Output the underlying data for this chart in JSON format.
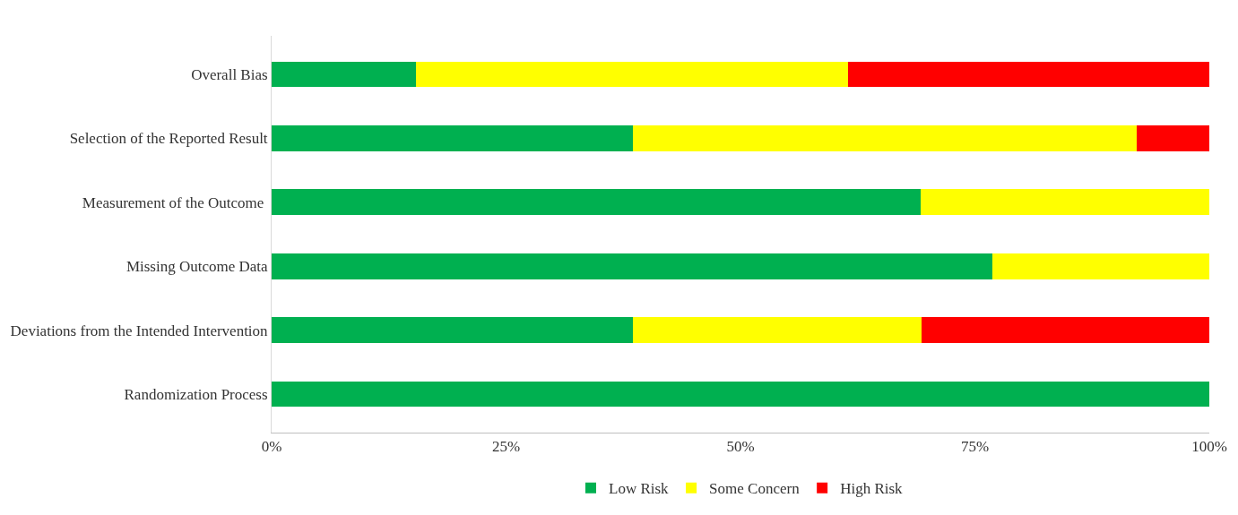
{
  "chart_data": {
    "type": "bar",
    "orientation": "horizontal",
    "stacked": true,
    "categories": [
      "Overall Bias",
      "Selection of the Reported Result",
      "Measurement of the Outcome ",
      "Missing Outcome Data",
      "Deviations from the Intended Intervention",
      "Randomization Process"
    ],
    "series": [
      {
        "name": "Low Risk",
        "color": "#00b050",
        "values": [
          15.4,
          38.5,
          69.2,
          76.9,
          38.5,
          100
        ]
      },
      {
        "name": "Some Concern",
        "color": "#ffff00",
        "values": [
          46.1,
          53.8,
          30.8,
          23.1,
          30.8,
          0
        ]
      },
      {
        "name": "High Risk",
        "color": "#ff0000",
        "values": [
          38.5,
          7.7,
          0,
          0,
          30.7,
          0
        ]
      }
    ],
    "xlim": [
      0,
      100
    ],
    "xticks": [
      {
        "value": 0,
        "label": "0%"
      },
      {
        "value": 25,
        "label": "25%"
      },
      {
        "value": 50,
        "label": "50%"
      },
      {
        "value": 75,
        "label": "75%"
      },
      {
        "value": 100,
        "label": "100%"
      }
    ],
    "legend": "bottom"
  }
}
